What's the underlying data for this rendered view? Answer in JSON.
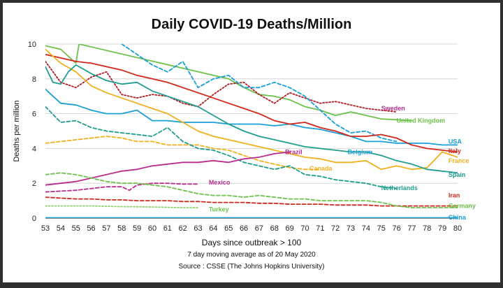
{
  "chart_data": {
    "type": "line",
    "title": "Daily COVID-19 Deaths/Million",
    "xlabel": "Days since outbreak > 100",
    "ylabel": "Deaths per million",
    "notes": [
      "7 day moving average as of 20 May 2020",
      "Source : CSSE (The Johns Hopkins University)"
    ],
    "xlim": [
      53,
      80
    ],
    "ylim": [
      0,
      10
    ],
    "x_ticks": [
      53,
      54,
      55,
      56,
      57,
      58,
      59,
      60,
      61,
      62,
      63,
      64,
      65,
      66,
      67,
      68,
      69,
      70,
      71,
      72,
      73,
      74,
      75,
      76,
      77,
      78,
      79,
      80
    ],
    "y_ticks": [
      0,
      2,
      4,
      6,
      8,
      10
    ],
    "grid": "horizontal",
    "series": [
      {
        "name": "United Kingdom",
        "color": "#6cc24a",
        "style": "solid",
        "x": [
          53,
          54,
          55,
          55.2,
          64,
          65,
          66,
          67,
          68,
          69,
          70,
          71,
          72,
          73,
          74,
          75,
          76,
          77
        ],
        "y": [
          9.9,
          9.7,
          8.9,
          10,
          8.2,
          8.0,
          7.5,
          7.1,
          7.0,
          6.8,
          6.4,
          6.2,
          5.9,
          6.1,
          5.9,
          5.7,
          5.65,
          5.6
        ]
      },
      {
        "name": "Sweden",
        "color": "#b01c24",
        "style": "dotted",
        "x": [
          53,
          54,
          55,
          56,
          57,
          58,
          59,
          60,
          61,
          62,
          63,
          64,
          65,
          66,
          67,
          68,
          69,
          70,
          71,
          72,
          73,
          74,
          75,
          76
        ],
        "y": [
          9.0,
          7.8,
          7.5,
          8.1,
          8.4,
          7.1,
          6.9,
          7.1,
          7.0,
          6.6,
          6.4,
          7.1,
          7.7,
          7.8,
          7.1,
          6.6,
          7.2,
          6.9,
          6.6,
          6.7,
          6.5,
          6.3,
          6.2,
          6.1
        ]
      },
      {
        "name": "USA",
        "color": "#1a9fd6",
        "style": "solid",
        "x": [
          53,
          54,
          55,
          56,
          57,
          58,
          59,
          60,
          61,
          62,
          63,
          64,
          65,
          66,
          67,
          68,
          69,
          70,
          71,
          72,
          73,
          74,
          75,
          76,
          77,
          78,
          79,
          80
        ],
        "y": [
          7.4,
          6.6,
          6.5,
          6.2,
          6.0,
          6.0,
          6.2,
          5.6,
          5.6,
          5.5,
          5.5,
          5.5,
          5.4,
          5.4,
          5.4,
          5.3,
          5.4,
          5.2,
          5.1,
          4.9,
          4.7,
          4.4,
          4.4,
          4.3,
          4.3,
          4.3,
          4.2,
          4.2
        ]
      },
      {
        "name": "Belgium",
        "color": "#1a9fd6",
        "style": "dashed",
        "x": [
          58,
          60,
          61,
          62,
          63,
          64,
          65,
          66,
          67,
          68,
          69,
          70,
          71,
          72,
          73,
          74,
          75,
          76
        ],
        "y": [
          10,
          8.8,
          8.4,
          9.0,
          7.5,
          8.0,
          8.2,
          7.5,
          7.5,
          7.8,
          7.5,
          7.0,
          6.2,
          5.4,
          4.9,
          5.0,
          4.6,
          4.4
        ]
      },
      {
        "name": "Italy",
        "color": "#d1271b",
        "style": "solid",
        "x": [
          53,
          54,
          55,
          56,
          57,
          58,
          59,
          60,
          61,
          62,
          63,
          64,
          65,
          66,
          67,
          68,
          69,
          70,
          71,
          72,
          73,
          74,
          75,
          76,
          77,
          78,
          79,
          80
        ],
        "y": [
          9.4,
          9.2,
          9.0,
          8.9,
          8.7,
          8.5,
          8.2,
          8.0,
          7.8,
          7.5,
          7.2,
          6.9,
          6.6,
          6.3,
          6.0,
          5.6,
          5.4,
          5.5,
          5.2,
          5.0,
          4.7,
          4.7,
          4.8,
          4.6,
          4.2,
          4.0,
          3.9,
          3.8
        ]
      },
      {
        "name": "France",
        "color": "#f2b01e",
        "style": "solid",
        "x": [
          53,
          54,
          55,
          56,
          57,
          58,
          59,
          60,
          61,
          62,
          63,
          64,
          65,
          66,
          67,
          68,
          69,
          70,
          71,
          72,
          73,
          74,
          75,
          76,
          77,
          78,
          79,
          80
        ],
        "y": [
          9.7,
          8.9,
          8.4,
          7.6,
          7.2,
          6.9,
          6.6,
          6.3,
          6.0,
          5.5,
          5.0,
          4.7,
          4.5,
          4.3,
          4.1,
          3.9,
          3.7,
          3.5,
          3.4,
          3.2,
          3.2,
          3.3,
          2.8,
          3.0,
          2.8,
          2.9,
          3.8,
          3.5
        ]
      },
      {
        "name": "Canada",
        "color": "#f2b01e",
        "style": "dashed",
        "x": [
          53,
          54,
          55,
          56,
          57,
          58,
          59,
          60,
          61,
          62,
          63,
          64,
          65,
          66,
          67,
          68,
          69,
          70,
          71
        ],
        "y": [
          4.3,
          4.4,
          4.5,
          4.6,
          4.7,
          4.6,
          4.4,
          4.4,
          4.2,
          4.2,
          4.2,
          4.0,
          3.9,
          3.6,
          3.3,
          3.1,
          2.9,
          2.8,
          2.8
        ]
      },
      {
        "name": "Spain",
        "color": "#1f9e8e",
        "style": "solid",
        "x": [
          53,
          53.5,
          54,
          54.5,
          55,
          56,
          57,
          58,
          59,
          60,
          61,
          62,
          63,
          64,
          65,
          66,
          67,
          68,
          69,
          70,
          71,
          72,
          73,
          74,
          75,
          76,
          77,
          78,
          79,
          80
        ],
        "y": [
          8.7,
          7.8,
          7.7,
          8.4,
          8.8,
          8.3,
          7.9,
          7.7,
          7.8,
          7.3,
          7.0,
          6.7,
          6.4,
          5.9,
          5.4,
          5.0,
          4.7,
          4.5,
          4.3,
          4.1,
          4.0,
          3.9,
          3.8,
          3.8,
          3.6,
          3.3,
          3.1,
          2.8,
          2.7,
          2.6
        ]
      },
      {
        "name": "Netherlands",
        "color": "#1f9e8e",
        "style": "dashed",
        "x": [
          53,
          54,
          55,
          56,
          57,
          58,
          59,
          60,
          61,
          62,
          63,
          64,
          65,
          66,
          67,
          68,
          69,
          70,
          71,
          72,
          73,
          74,
          75,
          76
        ],
        "y": [
          6.4,
          5.5,
          5.6,
          5.2,
          5.0,
          4.9,
          4.8,
          4.7,
          5.2,
          4.4,
          4.0,
          3.9,
          3.6,
          3.2,
          3.0,
          2.8,
          3.0,
          2.5,
          2.4,
          2.2,
          2.1,
          2.0,
          1.8,
          1.7
        ]
      },
      {
        "name": "Brazil",
        "color": "#b72c8e",
        "style": "solid",
        "x": [
          53,
          54,
          55,
          56,
          57,
          58,
          59,
          60,
          61,
          62,
          63,
          64,
          65,
          66,
          67,
          68,
          69
        ],
        "y": [
          1.9,
          2.0,
          2.1,
          2.3,
          2.5,
          2.7,
          2.8,
          3.0,
          3.1,
          3.2,
          3.2,
          3.3,
          3.2,
          3.4,
          3.5,
          3.7,
          3.8
        ]
      },
      {
        "name": "Mexico",
        "color": "#b72c8e",
        "style": "dashed",
        "x": [
          53,
          54,
          55,
          56,
          57,
          58,
          58.5,
          59,
          60,
          61,
          62,
          63
        ],
        "y": [
          1.5,
          1.55,
          1.6,
          1.7,
          1.8,
          1.8,
          1.6,
          1.9,
          2.0,
          2.0,
          1.95,
          1.95
        ]
      },
      {
        "name": "Iran",
        "color": "#d1271b",
        "style": "dashed",
        "x": [
          53,
          54,
          55,
          56,
          57,
          58,
          59,
          60,
          61,
          62,
          63,
          64,
          65,
          66,
          67,
          68,
          69,
          70,
          71,
          72,
          73,
          74,
          75,
          76,
          77,
          78,
          79,
          80
        ],
        "y": [
          1.2,
          1.15,
          1.1,
          1.1,
          1.05,
          1.05,
          1.0,
          1.0,
          1.0,
          0.95,
          0.95,
          0.9,
          0.9,
          0.9,
          0.85,
          0.85,
          0.8,
          0.8,
          0.8,
          0.75,
          0.75,
          0.75,
          0.7,
          0.7,
          0.7,
          0.7,
          0.7,
          0.7
        ]
      },
      {
        "name": "Germany",
        "color": "#6cc24a",
        "style": "dashed",
        "x": [
          53,
          54,
          55,
          56,
          57,
          58,
          59,
          60,
          61,
          62,
          63,
          64,
          65,
          66,
          67,
          68,
          69,
          70,
          71,
          72,
          73,
          74,
          75,
          76,
          77,
          78,
          79,
          80
        ],
        "y": [
          2.5,
          2.6,
          2.5,
          2.3,
          2.1,
          2.0,
          2.0,
          1.9,
          1.8,
          1.6,
          1.4,
          1.3,
          1.3,
          1.2,
          1.3,
          1.2,
          1.1,
          1.1,
          1.0,
          1.0,
          1.0,
          1.0,
          0.9,
          0.7,
          0.6,
          0.6,
          0.6,
          0.6
        ]
      },
      {
        "name": "Turkey",
        "color": "#8ed36b",
        "style": "dotted",
        "x": [
          53,
          54,
          55,
          56,
          57,
          58,
          59,
          60,
          61,
          62,
          63
        ],
        "y": [
          0.7,
          0.7,
          0.7,
          0.7,
          0.68,
          0.66,
          0.65,
          0.64,
          0.62,
          0.6,
          0.6
        ]
      },
      {
        "name": "China",
        "color": "#1a9fd6",
        "style": "solid",
        "x": [
          53,
          80
        ],
        "y": [
          0.02,
          0.02
        ]
      }
    ],
    "annotations": [
      {
        "text": "Sweden",
        "x": 75.0,
        "y": 6.3,
        "color": "#b72c8e"
      },
      {
        "text": "United Kingdom",
        "x": 76.0,
        "y": 5.6,
        "color": "#6cc24a"
      },
      {
        "text": "USA",
        "x": 79.4,
        "y": 4.4,
        "color": "#1a9fd6"
      },
      {
        "text": "Italy",
        "x": 79.4,
        "y": 3.85,
        "color": "#d1271b"
      },
      {
        "text": "France",
        "x": 79.4,
        "y": 3.3,
        "color": "#f2b01e"
      },
      {
        "text": "Belgium",
        "x": 72.8,
        "y": 3.8,
        "color": "#1a9fd6"
      },
      {
        "text": "Brazil",
        "x": 68.7,
        "y": 3.8,
        "color": "#b72c8e"
      },
      {
        "text": "Canada",
        "x": 70.3,
        "y": 2.85,
        "color": "#f2b01e"
      },
      {
        "text": "Spain",
        "x": 79.4,
        "y": 2.5,
        "color": "#1f9e8e"
      },
      {
        "text": "Mexico",
        "x": 63.7,
        "y": 2.05,
        "color": "#b72c8e"
      },
      {
        "text": "Netherlands",
        "x": 75.0,
        "y": 1.72,
        "color": "#1f9e8e"
      },
      {
        "text": "Iran",
        "x": 79.4,
        "y": 1.3,
        "color": "#d1271b"
      },
      {
        "text": "Germany",
        "x": 79.4,
        "y": 0.7,
        "color": "#6cc24a"
      },
      {
        "text": "Turkey",
        "x": 63.7,
        "y": 0.5,
        "color": "#6cc24a"
      },
      {
        "text": "China",
        "x": 79.4,
        "y": 0.05,
        "color": "#1a9fd6"
      }
    ]
  }
}
